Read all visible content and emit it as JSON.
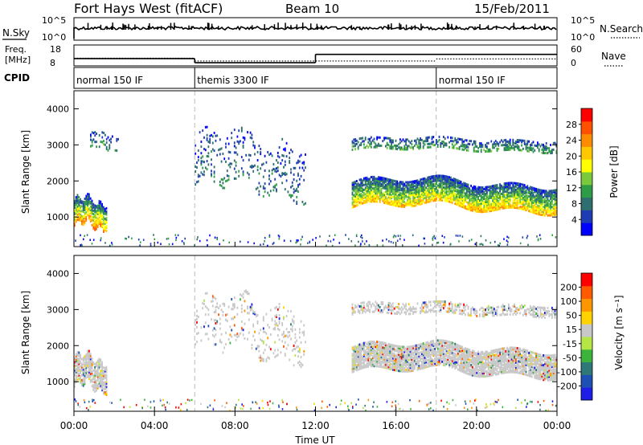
{
  "header": {
    "station": "Fort Hays West (fitACF)",
    "beam": "Beam 10",
    "date": "15/Feb/2011"
  },
  "panels": {
    "nsky": {
      "label": "N.Sky",
      "right_label": "N.Search",
      "left_ticks": [
        "10^5",
        "10^0"
      ],
      "right_ticks": [
        "10^5",
        "10^0"
      ]
    },
    "freq": {
      "label_line1": "Freq.",
      "label_line2": "[MHz]",
      "right_label": "Nave",
      "left_ticks": [
        "18",
        "8"
      ],
      "right_ticks": [
        "60",
        "0"
      ],
      "freq_segments_mhz": [
        {
          "t0": 0,
          "t1": 6,
          "value": 11.5
        },
        {
          "t0": 6,
          "t1": 12,
          "value": 9.5
        },
        {
          "t0": 12,
          "t1": 24,
          "value": 13.5
        }
      ],
      "nave_segments": [
        {
          "t0": 0,
          "t1": 6,
          "value": 22
        },
        {
          "t0": 6,
          "t1": 18,
          "value": 14
        },
        {
          "t0": 18,
          "t1": 24,
          "value": 20
        }
      ]
    },
    "cpid": {
      "label": "CPID",
      "segments": [
        {
          "t0": 0,
          "t1": 6,
          "label": "normal 150 IF"
        },
        {
          "t0": 6,
          "t1": 18,
          "label": "themis 3300 IF"
        },
        {
          "t0": 18,
          "t1": 24,
          "label": "normal 150 IF"
        }
      ]
    }
  },
  "chart_data": [
    {
      "type": "heatmap",
      "name": "power",
      "ylabel": "Slant Range [km]",
      "xlabel": "Time UT",
      "xlim": [
        0,
        24
      ],
      "ylim": [
        180,
        4500
      ],
      "x_ticks": [
        "00:00",
        "04:00",
        "08:00",
        "12:00",
        "16:00",
        "20:00",
        "00:00"
      ],
      "y_ticks": [
        1000,
        2000,
        3000,
        4000
      ],
      "colorbar": {
        "label": "Power [dB]",
        "ticks": [
          "28",
          "24",
          "20",
          "16",
          "12",
          "8",
          "4"
        ],
        "colors": [
          "#0000ff",
          "#1e3cb4",
          "#2f6e6e",
          "#2e9b46",
          "#7ac83c",
          "#ffff00",
          "#ffc800",
          "#ff8c00",
          "#ff5000",
          "#ff0000"
        ]
      },
      "scatter_regions": [
        {
          "t0": 0.0,
          "t1": 1.6,
          "r_center": 1150,
          "r_width": 700,
          "density": 0.8,
          "level": 0.65
        },
        {
          "t0": 0.8,
          "t1": 2.2,
          "r_center": 3150,
          "r_width": 400,
          "density": 0.25,
          "level": 0.2
        },
        {
          "t0": 6.0,
          "t1": 11.5,
          "r_center": 2500,
          "r_width": 1400,
          "density": 0.12,
          "level": 0.15
        },
        {
          "t0": 13.8,
          "t1": 24.0,
          "r_center": 1650,
          "r_width": 700,
          "density": 0.85,
          "level": 0.55
        },
        {
          "t0": 13.8,
          "t1": 24.0,
          "r_center": 3050,
          "r_width": 300,
          "density": 0.45,
          "level": 0.25
        }
      ]
    },
    {
      "type": "heatmap",
      "name": "velocity",
      "ylabel": "Slant Range [km]",
      "xlabel": "Time UT",
      "xlim": [
        0,
        24
      ],
      "ylim": [
        180,
        4500
      ],
      "x_ticks": [
        "00:00",
        "04:00",
        "08:00",
        "12:00",
        "16:00",
        "20:00",
        "00:00"
      ],
      "y_ticks": [
        1000,
        2000,
        3000,
        4000
      ],
      "colorbar": {
        "label": "Velocity [m s⁻¹]",
        "ticks": [
          "200",
          "100",
          "50",
          "15",
          "-15",
          "-50",
          "-100",
          "-200"
        ],
        "colors": [
          "#1e1ee6",
          "#1e50b4",
          "#2f7878",
          "#3cb43c",
          "#b4e646",
          "#c8c8c8",
          "#ffd200",
          "#ff9600",
          "#ff5a00",
          "#ff0000"
        ]
      },
      "scatter_regions": [
        {
          "t0": 0.0,
          "t1": 1.6,
          "r_center": 1300,
          "r_width": 800,
          "density": 0.75,
          "level": 0.5
        },
        {
          "t0": 6.0,
          "t1": 11.5,
          "r_center": 2500,
          "r_width": 1400,
          "density": 0.12,
          "level": 0.5
        },
        {
          "t0": 13.8,
          "t1": 24.0,
          "r_center": 1650,
          "r_width": 700,
          "density": 0.85,
          "level": 0.5
        },
        {
          "t0": 13.8,
          "t1": 24.0,
          "r_center": 3050,
          "r_width": 300,
          "density": 0.45,
          "level": 0.5
        }
      ]
    }
  ]
}
